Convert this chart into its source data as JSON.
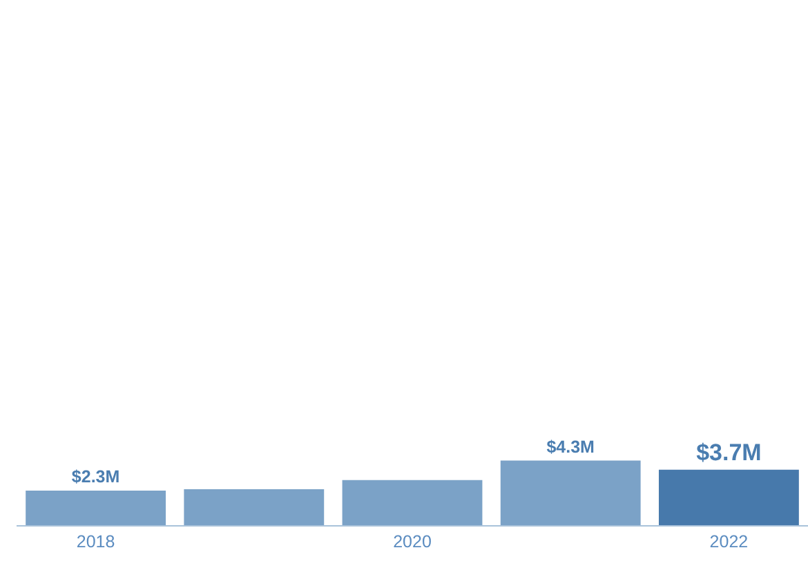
{
  "chart_data": {
    "type": "bar",
    "categories": [
      "2018",
      null,
      "2020",
      null,
      "2022"
    ],
    "values": [
      2.3,
      2.4,
      3.0,
      4.3,
      3.7
    ],
    "colors": [
      "#7ba2c7",
      "#7ba2c7",
      "#7ba2c7",
      "#7ba2c7",
      "#4779ab"
    ],
    "value_labels": [
      "$2.3M",
      null,
      null,
      "$4.3M",
      "$3.7M"
    ],
    "ylim": [
      0,
      35
    ],
    "grid": false,
    "legend": false
  }
}
